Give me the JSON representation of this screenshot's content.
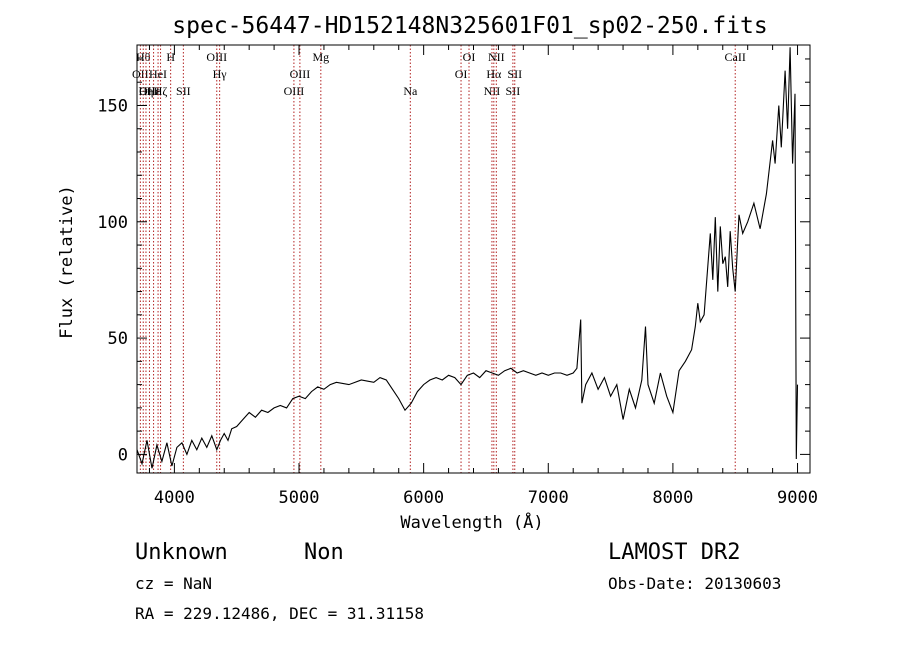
{
  "chart_data": {
    "type": "line",
    "title": "spec-56447-HD152148N325601F01_sp02-250.fits",
    "xlabel": "Wavelength (Å)",
    "ylabel": "Flux (relative)",
    "xlim": [
      3700,
      9100
    ],
    "ylim": [
      -8,
      176
    ],
    "xticks": [
      4000,
      5000,
      6000,
      7000,
      8000,
      9000
    ],
    "yticks": [
      0,
      50,
      100,
      150
    ],
    "grid": false,
    "series": [
      {
        "color": "#000000",
        "points": [
          [
            3700,
            2
          ],
          [
            3740,
            -4
          ],
          [
            3780,
            6
          ],
          [
            3820,
            -6
          ],
          [
            3860,
            4
          ],
          [
            3900,
            -3
          ],
          [
            3940,
            5
          ],
          [
            3980,
            -5
          ],
          [
            4020,
            3
          ],
          [
            4060,
            5
          ],
          [
            4100,
            0
          ],
          [
            4140,
            6
          ],
          [
            4180,
            2
          ],
          [
            4220,
            7
          ],
          [
            4260,
            3
          ],
          [
            4300,
            8
          ],
          [
            4340,
            2
          ],
          [
            4370,
            6
          ],
          [
            4400,
            9
          ],
          [
            4430,
            6
          ],
          [
            4460,
            11
          ],
          [
            4500,
            12
          ],
          [
            4550,
            15
          ],
          [
            4600,
            18
          ],
          [
            4650,
            16
          ],
          [
            4700,
            19
          ],
          [
            4750,
            18
          ],
          [
            4800,
            20
          ],
          [
            4850,
            21
          ],
          [
            4900,
            20
          ],
          [
            4950,
            24
          ],
          [
            5000,
            25
          ],
          [
            5050,
            24
          ],
          [
            5100,
            27
          ],
          [
            5150,
            29
          ],
          [
            5200,
            28
          ],
          [
            5250,
            30
          ],
          [
            5300,
            31
          ],
          [
            5400,
            30
          ],
          [
            5500,
            32
          ],
          [
            5600,
            31
          ],
          [
            5650,
            33
          ],
          [
            5700,
            32
          ],
          [
            5750,
            28
          ],
          [
            5800,
            24
          ],
          [
            5850,
            19
          ],
          [
            5900,
            22
          ],
          [
            5950,
            27
          ],
          [
            6000,
            30
          ],
          [
            6050,
            32
          ],
          [
            6100,
            33
          ],
          [
            6150,
            32
          ],
          [
            6200,
            34
          ],
          [
            6250,
            33
          ],
          [
            6300,
            30
          ],
          [
            6350,
            34
          ],
          [
            6400,
            35
          ],
          [
            6450,
            33
          ],
          [
            6500,
            36
          ],
          [
            6550,
            35
          ],
          [
            6600,
            34
          ],
          [
            6650,
            36
          ],
          [
            6700,
            37
          ],
          [
            6750,
            35
          ],
          [
            6800,
            36
          ],
          [
            6850,
            35
          ],
          [
            6900,
            34
          ],
          [
            6950,
            35
          ],
          [
            7000,
            34
          ],
          [
            7050,
            35
          ],
          [
            7100,
            35
          ],
          [
            7150,
            34
          ],
          [
            7200,
            35
          ],
          [
            7230,
            37
          ],
          [
            7260,
            58
          ],
          [
            7270,
            22
          ],
          [
            7300,
            30
          ],
          [
            7350,
            35
          ],
          [
            7400,
            28
          ],
          [
            7450,
            33
          ],
          [
            7500,
            25
          ],
          [
            7550,
            30
          ],
          [
            7600,
            15
          ],
          [
            7650,
            28
          ],
          [
            7700,
            20
          ],
          [
            7750,
            32
          ],
          [
            7780,
            55
          ],
          [
            7800,
            30
          ],
          [
            7850,
            22
          ],
          [
            7900,
            35
          ],
          [
            7950,
            25
          ],
          [
            8000,
            18
          ],
          [
            8050,
            36
          ],
          [
            8100,
            40
          ],
          [
            8150,
            45
          ],
          [
            8180,
            55
          ],
          [
            8200,
            65
          ],
          [
            8220,
            57
          ],
          [
            8250,
            60
          ],
          [
            8300,
            95
          ],
          [
            8320,
            75
          ],
          [
            8340,
            102
          ],
          [
            8360,
            70
          ],
          [
            8380,
            98
          ],
          [
            8400,
            82
          ],
          [
            8420,
            85
          ],
          [
            8440,
            72
          ],
          [
            8460,
            96
          ],
          [
            8480,
            80
          ],
          [
            8500,
            70
          ],
          [
            8530,
            103
          ],
          [
            8560,
            95
          ],
          [
            8600,
            100
          ],
          [
            8650,
            108
          ],
          [
            8700,
            97
          ],
          [
            8750,
            112
          ],
          [
            8800,
            135
          ],
          [
            8820,
            125
          ],
          [
            8850,
            150
          ],
          [
            8870,
            132
          ],
          [
            8900,
            165
          ],
          [
            8920,
            140
          ],
          [
            8940,
            175
          ],
          [
            8960,
            125
          ],
          [
            8980,
            155
          ],
          [
            8990,
            -2
          ],
          [
            9000,
            30
          ]
        ]
      }
    ],
    "lines": [
      {
        "x": 3727,
        "label": "OII",
        "row": 2
      },
      {
        "x": 3750,
        "label": "Hθ",
        "row": 1
      },
      {
        "x": 3772,
        "label": "Hη",
        "row": 3
      },
      {
        "x": 3800,
        "label": "OIII",
        "row": 3
      },
      {
        "x": 3833,
        "label": "Hε",
        "row": 3
      },
      {
        "x": 3869,
        "label": "HeI",
        "row": 2
      },
      {
        "x": 3889,
        "label": "Hζ",
        "row": 3
      },
      {
        "x": 3970,
        "label": "H",
        "row": 1
      },
      {
        "x": 4072,
        "label": "SII",
        "row": 3
      },
      {
        "x": 4340,
        "label": "OIII",
        "row": 1
      },
      {
        "x": 4363,
        "label": "Hγ",
        "row": 2
      },
      {
        "x": 4959,
        "label": "OIII",
        "row": 3
      },
      {
        "x": 5007,
        "label": "OIII",
        "row": 2
      },
      {
        "x": 5175,
        "label": "Mg",
        "row": 1
      },
      {
        "x": 5893,
        "label": "Na",
        "row": 3
      },
      {
        "x": 6300,
        "label": "OI",
        "row": 2
      },
      {
        "x": 6364,
        "label": "OI",
        "row": 1
      },
      {
        "x": 6548,
        "label": "NII",
        "row": 3
      },
      {
        "x": 6563,
        "label": "Hα",
        "row": 2
      },
      {
        "x": 6583,
        "label": "NII",
        "row": 1
      },
      {
        "x": 6716,
        "label": "SII",
        "row": 3
      },
      {
        "x": 6731,
        "label": "SII",
        "row": 2
      },
      {
        "x": 8500,
        "label": "CaII",
        "row": 1
      }
    ]
  },
  "info": {
    "class": "Unknown",
    "subclass": "Non",
    "cz": "cz = NaN",
    "coords": "RA = 229.12486, DEC =  31.31158",
    "survey": "LAMOST DR2",
    "obsdate": "Obs-Date: 20130603"
  },
  "colors": {
    "lines": "#b22222",
    "spectrum": "#000000",
    "axes": "#000000"
  }
}
